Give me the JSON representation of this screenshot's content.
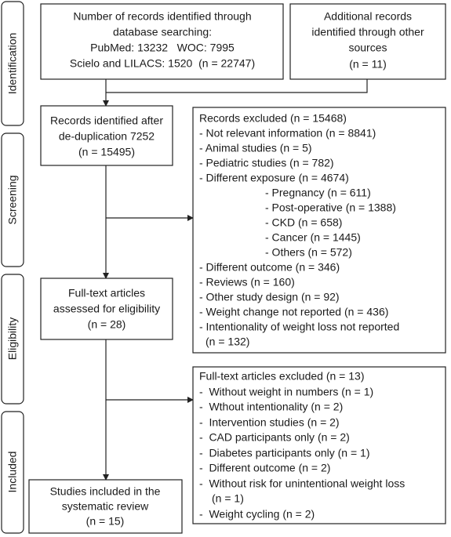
{
  "stages": [
    "Identification",
    "Screening",
    "Eligibility",
    "Included"
  ],
  "database_records": {
    "lines": [
      "Number of records identified through",
      "database searching:",
      "PubMed: 13232   WOC: 7995",
      "Scielo and LILACS: 1520  (n = 22747)"
    ]
  },
  "other_sources": {
    "lines": [
      "Additional records",
      "identified through other",
      "sources",
      "(n = 11)"
    ]
  },
  "deduplicated": {
    "lines": [
      "Records identified after",
      "de-duplication 7252",
      "(n = 15495)"
    ]
  },
  "records_excluded": {
    "lines": [
      "Records excluded (n = 15468)",
      "- Not relevant information (n = 8841)",
      "- Animal studies (n = 5)",
      "- Pediatric studies (n = 782)",
      "- Different exposure (n = 4674)",
      "- Pregnancy (n = 611)",
      "- Post-operative (n = 1388)",
      "- CKD (n = 658)",
      "- Cancer (n = 1445)",
      "- Others (n = 572)",
      "- Different outcome (n = 346)",
      "- Reviews (n = 160)",
      "- Other study design (n = 92)",
      "- Weight change not reported (n = 436)",
      "- Intentionality of weight loss not reported",
      "(n = 132)"
    ]
  },
  "fulltext_assessed": {
    "lines": [
      "Full-text articles",
      "assessed for eligibility",
      "(n = 28)"
    ]
  },
  "fulltext_excluded": {
    "lines": [
      "Full-text articles excluded (n = 13)",
      "-  Without weight in numbers (n = 1)",
      "-  Wthout intentionality (n = 2)",
      "-  Intervention studies (n = 2)",
      "-  CAD participants only (n = 2)",
      "-  Diabetes participants only (n = 1)",
      "-  Different outcome (n = 2)",
      "-  Without risk for unintentional weight loss",
      "(n = 1)",
      "-  Weight cycling (n = 2)"
    ]
  },
  "included": {
    "lines": [
      "Studies included in the",
      "systematic review",
      "(n = 15)"
    ]
  }
}
